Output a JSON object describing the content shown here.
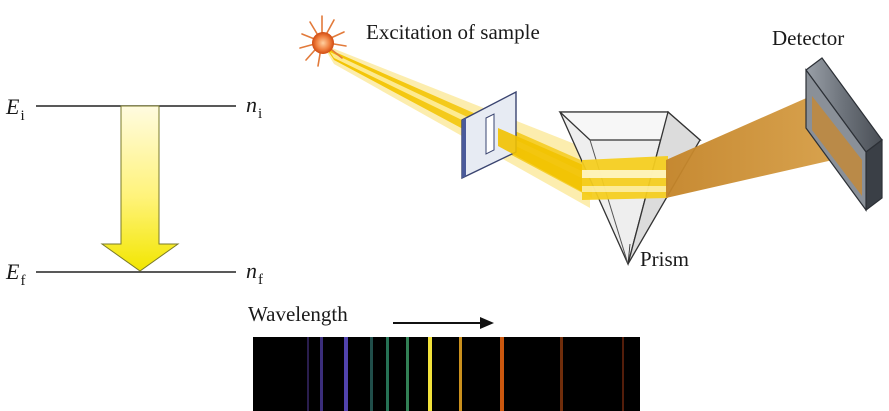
{
  "energy_diagram": {
    "upper_level": {
      "energy_symbol": "E",
      "energy_subscript": "i",
      "quantum_symbol": "n",
      "quantum_subscript": "i"
    },
    "lower_level": {
      "energy_symbol": "E",
      "energy_subscript": "f",
      "quantum_symbol": "n",
      "quantum_subscript": "f"
    }
  },
  "apparatus": {
    "source_label": "Excitation of sample",
    "prism_label": "Prism",
    "detector_label": "Detector"
  },
  "spectrum": {
    "axis_label": "Wavelength",
    "lines": [
      {
        "color": "#3b2a6e",
        "brightness": 0.7
      },
      {
        "color": "#4a3a9a",
        "brightness": 0.8
      },
      {
        "color": "#5a4ac0",
        "brightness": 0.9
      },
      {
        "color": "#2e6f6a",
        "brightness": 0.7
      },
      {
        "color": "#2f8f6a",
        "brightness": 0.8
      },
      {
        "color": "#3fa06a",
        "brightness": 0.8
      },
      {
        "color": "#f2e23a",
        "brightness": 1.0
      },
      {
        "color": "#e0a020",
        "brightness": 0.9
      },
      {
        "color": "#e06010",
        "brightness": 0.9
      },
      {
        "color": "#a04010",
        "brightness": 0.7
      },
      {
        "color": "#8a3010",
        "brightness": 0.6
      }
    ]
  },
  "colors": {
    "beam": "#f2c200",
    "beam_light": "#f9e27a",
    "dispersed": "#c98a2a",
    "detector": "#7a7e86",
    "spectrum_bg": "#000000"
  }
}
